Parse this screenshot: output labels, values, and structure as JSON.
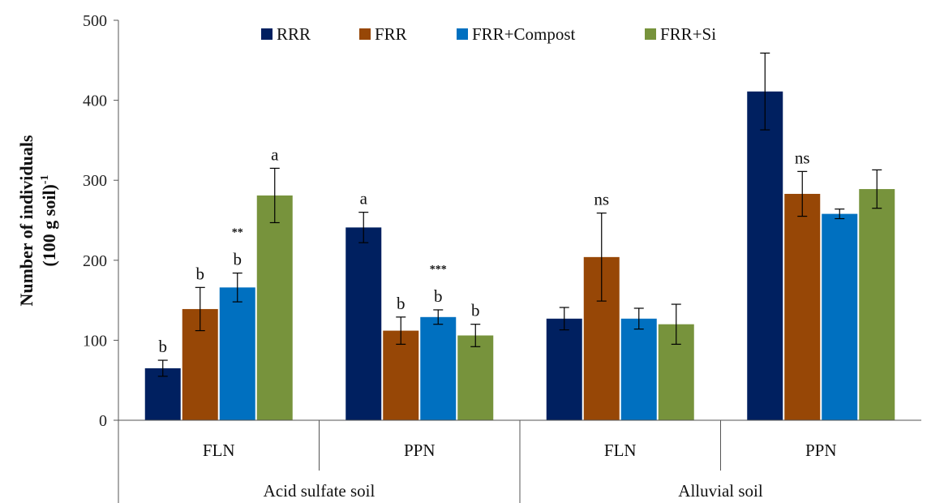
{
  "chart_data": {
    "type": "bar",
    "ylabel_line1": "Number of individuals",
    "ylabel_line2": "(100 g soil)",
    "ylabel_superscript": "-1",
    "ylim": [
      0,
      500
    ],
    "yticks": [
      0,
      100,
      200,
      300,
      400,
      500
    ],
    "grid": false,
    "legend_position": "top",
    "groups": [
      {
        "name": "Acid sulfate soil",
        "categories": [
          "FLN",
          "PPN"
        ]
      },
      {
        "name": "Alluvial soil",
        "categories": [
          "FLN",
          "PPN"
        ]
      }
    ],
    "series": [
      {
        "name": "RRR",
        "color": "#002060",
        "values": [
          65,
          241,
          127,
          411
        ],
        "errors": [
          10,
          19,
          14,
          48
        ]
      },
      {
        "name": "FRR",
        "color": "#974706",
        "values": [
          139,
          112,
          204,
          283
        ],
        "errors": [
          27,
          17,
          55,
          28
        ]
      },
      {
        "name": "FRR+Compost",
        "color": "#0070C0",
        "values": [
          166,
          129,
          127,
          258
        ],
        "errors": [
          18,
          9,
          13,
          6
        ]
      },
      {
        "name": "FRR+Si",
        "color": "#77933C",
        "values": [
          281,
          106,
          120,
          289
        ],
        "errors": [
          34,
          14,
          25,
          24
        ]
      }
    ],
    "bar_labels": [
      [
        "b",
        "a",
        "",
        ""
      ],
      [
        "b",
        "b",
        "ns",
        "ns"
      ],
      [
        "b",
        "b",
        "",
        ""
      ],
      [
        "a",
        "b",
        "",
        ""
      ]
    ],
    "star_annotations": [
      "**",
      "***",
      "",
      ""
    ],
    "star_series_index": 2
  }
}
